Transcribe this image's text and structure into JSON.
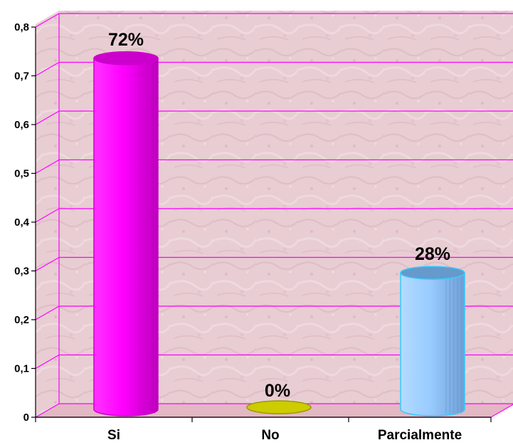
{
  "chart_data": {
    "type": "bar",
    "categories": [
      "Si",
      "No",
      "Parcialmente"
    ],
    "values": [
      0.72,
      0,
      0.28
    ],
    "data_labels": [
      "72%",
      "0%",
      "28%"
    ],
    "y_ticks": [
      "0",
      "0,1",
      "0,2",
      "0,3",
      "0,4",
      "0,5",
      "0,6",
      "0,7",
      "0,8"
    ],
    "ylim": [
      0,
      0.8
    ],
    "grid": true,
    "bar_shape": "cylinder",
    "colors": {
      "bars": [
        "#ff00ff",
        "#cccc00",
        "#99ccff"
      ],
      "bar_dark": [
        "#cc00cc",
        "#999900",
        "#6699cc"
      ],
      "bar_outline": [
        "#cc00cc",
        "#999900",
        "#33ccff"
      ],
      "gridlines": "#ff00ff",
      "wall": "#e6c9cf",
      "floor": "#e2b8c2",
      "axis": "#000000"
    }
  }
}
